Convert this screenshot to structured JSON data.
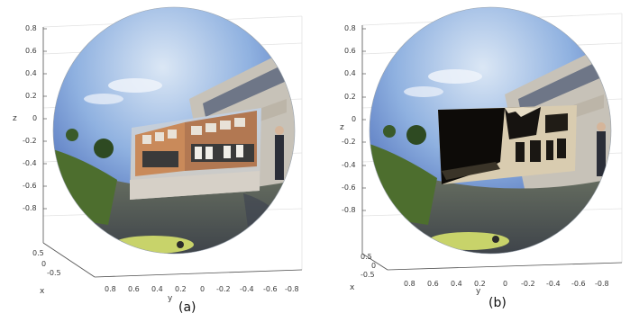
{
  "panels": [
    {
      "caption": "(a)",
      "z_axis_label": "z",
      "x_axis_label": "x",
      "y_axis_label": "y",
      "z_ticks": [
        "0.8",
        "0.6",
        "0.4",
        "0.2",
        "0",
        "-0.2",
        "-0.4",
        "-0.6",
        "-0.8"
      ],
      "x_ticks": [
        "0.5",
        "0",
        "-0.5"
      ],
      "y_ticks": [
        "0.8",
        "0.6",
        "0.4",
        "0.2",
        "0",
        "-0.2",
        "-0.4",
        "-0.6",
        "-0.8"
      ],
      "projection": "color-image"
    },
    {
      "caption": "(b)",
      "z_axis_label": "z",
      "x_axis_label": "x",
      "y_axis_label": "y",
      "z_ticks": [
        "0.8",
        "0.6",
        "0.4",
        "0.2",
        "0",
        "-0.2",
        "-0.4",
        "-0.6",
        "-0.8"
      ],
      "x_ticks": [
        "0.5",
        "0",
        "-0.5"
      ],
      "y_ticks": [
        "0.8",
        "0.6",
        "0.4",
        "0.2",
        "0",
        "-0.2",
        "-0.4",
        "-0.6",
        "-0.8"
      ],
      "projection": "depth-map"
    }
  ],
  "colors": {
    "sky_top": "#3d5fc0",
    "sky_light": "#c6d9ef",
    "building": "#c98a5a",
    "depth_light": "#d9ccb0",
    "depth_dark": "#0d0b08",
    "grass": "#4d6e2e",
    "pavement": "#5a5f6a"
  }
}
